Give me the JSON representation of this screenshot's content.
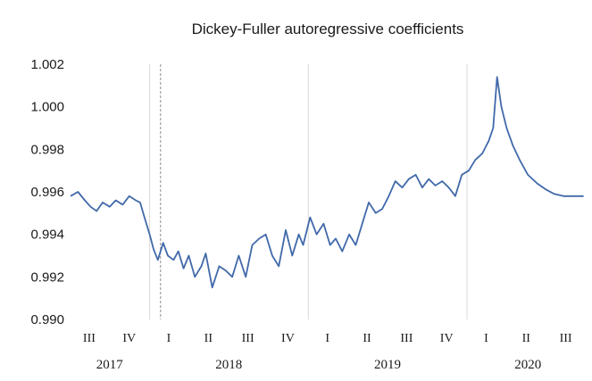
{
  "chart_data": {
    "type": "line",
    "title": "Dickey-Fuller autoregressive coefficients",
    "xlabel": "",
    "ylabel": "",
    "ylim": [
      0.99,
      1.002
    ],
    "yticks": [
      "0.990",
      "0.992",
      "0.994",
      "0.996",
      "0.998",
      "1.000",
      "1.002"
    ],
    "xlim": [
      "2017-07-01",
      "2020-09-30"
    ],
    "quarter_ticks": [
      {
        "label": "III",
        "date": "2017-08-15"
      },
      {
        "label": "IV",
        "date": "2017-11-15"
      },
      {
        "label": "I",
        "date": "2018-02-14"
      },
      {
        "label": "II",
        "date": "2018-05-16"
      },
      {
        "label": "III",
        "date": "2018-08-15"
      },
      {
        "label": "IV",
        "date": "2018-11-15"
      },
      {
        "label": "I",
        "date": "2019-02-14"
      },
      {
        "label": "II",
        "date": "2019-05-16"
      },
      {
        "label": "III",
        "date": "2019-08-15"
      },
      {
        "label": "IV",
        "date": "2019-11-15"
      },
      {
        "label": "I",
        "date": "2020-02-14"
      },
      {
        "label": "II",
        "date": "2020-05-16"
      },
      {
        "label": "III",
        "date": "2020-08-15"
      }
    ],
    "years": [
      {
        "label": "2017",
        "date": "2017-10-01"
      },
      {
        "label": "2018",
        "date": "2018-07-02"
      },
      {
        "label": "2019",
        "date": "2019-07-02"
      },
      {
        "label": "2020",
        "date": "2020-05-20"
      }
    ],
    "year_boundaries": [
      "2018-01-01",
      "2019-01-01",
      "2020-01-01"
    ],
    "marker_line_date": "2018-01-26",
    "grid": "vertical year boundaries only",
    "line_color": "#4169aa",
    "series": [
      {
        "x": [
          "2017-07-03",
          "2017-07-20",
          "2017-08-05",
          "2017-08-18",
          "2017-09-01",
          "2017-09-15",
          "2017-10-01",
          "2017-10-15",
          "2017-10-31",
          "2017-11-15",
          "2017-11-30",
          "2017-12-10",
          "2017-12-20",
          "2018-01-01",
          "2018-01-10",
          "2018-01-20",
          "2018-02-01",
          "2018-02-12",
          "2018-02-25",
          "2018-03-08",
          "2018-03-20",
          "2018-04-01",
          "2018-04-15",
          "2018-04-30",
          "2018-05-10",
          "2018-05-25",
          "2018-06-10",
          "2018-06-25",
          "2018-07-10",
          "2018-07-25",
          "2018-08-10",
          "2018-08-25",
          "2018-09-10",
          "2018-09-25",
          "2018-10-10",
          "2018-10-25",
          "2018-11-10",
          "2018-11-25",
          "2018-12-10",
          "2018-12-20",
          "2019-01-05",
          "2019-01-20",
          "2019-02-05",
          "2019-02-20",
          "2019-03-05",
          "2019-03-20",
          "2019-04-05",
          "2019-04-20",
          "2019-05-05",
          "2019-05-20",
          "2019-06-05",
          "2019-06-20",
          "2019-07-05",
          "2019-07-20",
          "2019-08-05",
          "2019-08-20",
          "2019-09-05",
          "2019-09-20",
          "2019-10-05",
          "2019-10-20",
          "2019-11-05",
          "2019-11-20",
          "2019-12-05",
          "2019-12-20",
          "2020-01-05",
          "2020-01-20",
          "2020-02-05",
          "2020-02-20",
          "2020-03-01",
          "2020-03-10",
          "2020-03-20",
          "2020-04-01",
          "2020-04-15",
          "2020-05-01",
          "2020-05-20",
          "2020-06-10",
          "2020-07-01",
          "2020-07-20",
          "2020-08-10",
          "2020-08-30",
          "2020-09-25"
        ],
        "y": [
          0.9958,
          0.996,
          0.9956,
          0.9953,
          0.9951,
          0.9955,
          0.9953,
          0.9956,
          0.9954,
          0.9958,
          0.9956,
          0.9955,
          0.9948,
          0.994,
          0.9933,
          0.9928,
          0.9936,
          0.993,
          0.9928,
          0.9932,
          0.9924,
          0.993,
          0.992,
          0.9925,
          0.9931,
          0.9915,
          0.9925,
          0.9923,
          0.992,
          0.993,
          0.992,
          0.9935,
          0.9938,
          0.994,
          0.993,
          0.9925,
          0.9942,
          0.993,
          0.994,
          0.9935,
          0.9948,
          0.994,
          0.9945,
          0.9935,
          0.9938,
          0.9932,
          0.994,
          0.9935,
          0.9945,
          0.9955,
          0.995,
          0.9952,
          0.9958,
          0.9965,
          0.9962,
          0.9966,
          0.9968,
          0.9962,
          0.9966,
          0.9963,
          0.9965,
          0.9962,
          0.9958,
          0.9968,
          0.997,
          0.9975,
          0.9978,
          0.9984,
          0.999,
          1.0014,
          1.0,
          0.999,
          0.9982,
          0.9975,
          0.9968,
          0.9964,
          0.9961,
          0.9959,
          0.9958,
          0.9958,
          0.9958
        ]
      }
    ]
  }
}
